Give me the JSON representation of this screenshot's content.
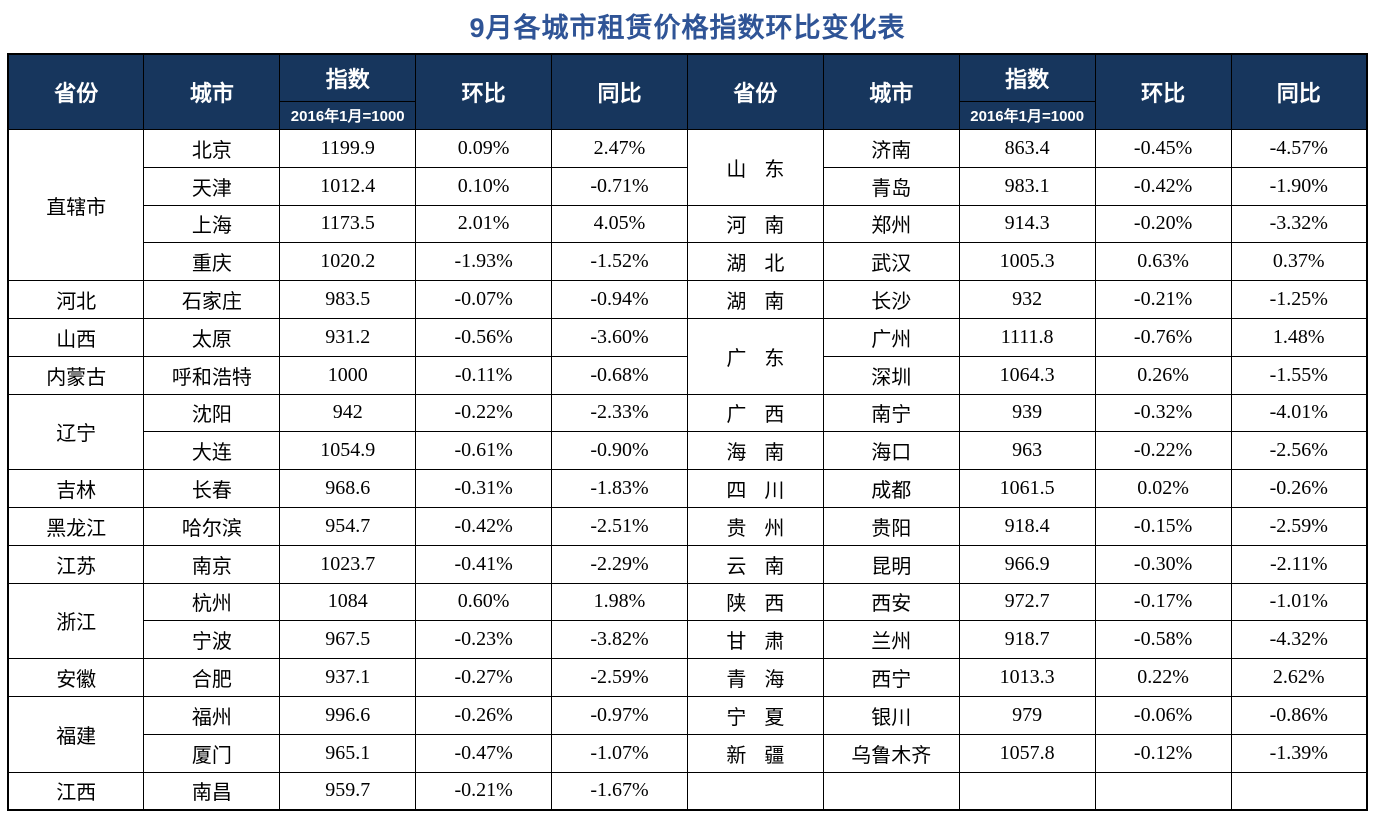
{
  "title": "9月各城市租赁价格指数环比变化表",
  "colors": {
    "header_bg": "#17365D",
    "header_text": "#FFFFFF",
    "title_text": "#2F5496",
    "grid": "#000000",
    "body_text": "#000000",
    "background": "#FFFFFF"
  },
  "header": {
    "province": "省份",
    "city": "城市",
    "index": "指数",
    "index_base": "2016年1月=1000",
    "mom": "环比",
    "yoy": "同比"
  },
  "left_rows": [
    {
      "province": "直辖市",
      "city": "北京",
      "index": "1199.9",
      "mom": "0.09%",
      "yoy": "2.47%"
    },
    {
      "city": "天津",
      "index": "1012.4",
      "mom": "0.10%",
      "yoy": "-0.71%"
    },
    {
      "city": "上海",
      "index": "1173.5",
      "mom": "2.01%",
      "yoy": "4.05%"
    },
    {
      "city": "重庆",
      "index": "1020.2",
      "mom": "-1.93%",
      "yoy": "-1.52%"
    },
    {
      "province": "河北",
      "city": "石家庄",
      "index": "983.5",
      "mom": "-0.07%",
      "yoy": "-0.94%"
    },
    {
      "province": "山西",
      "city": "太原",
      "index": "931.2",
      "mom": "-0.56%",
      "yoy": "-3.60%"
    },
    {
      "province": "内蒙古",
      "city": "呼和浩特",
      "index": "1000",
      "mom": "-0.11%",
      "yoy": "-0.68%"
    },
    {
      "province": "辽宁",
      "city": "沈阳",
      "index": "942",
      "mom": "-0.22%",
      "yoy": "-2.33%"
    },
    {
      "city": "大连",
      "index": "1054.9",
      "mom": "-0.61%",
      "yoy": "-0.90%"
    },
    {
      "province": "吉林",
      "city": "长春",
      "index": "968.6",
      "mom": "-0.31%",
      "yoy": "-1.83%"
    },
    {
      "province": "黑龙江",
      "city": "哈尔滨",
      "index": "954.7",
      "mom": "-0.42%",
      "yoy": "-2.51%"
    },
    {
      "province": "江苏",
      "city": "南京",
      "index": "1023.7",
      "mom": "-0.41%",
      "yoy": "-2.29%"
    },
    {
      "province": "浙江",
      "city": "杭州",
      "index": "1084",
      "mom": "0.60%",
      "yoy": "1.98%"
    },
    {
      "city": "宁波",
      "index": "967.5",
      "mom": "-0.23%",
      "yoy": "-3.82%"
    },
    {
      "province": "安徽",
      "city": "合肥",
      "index": "937.1",
      "mom": "-0.27%",
      "yoy": "-2.59%"
    },
    {
      "province": "福建",
      "city": "福州",
      "index": "996.6",
      "mom": "-0.26%",
      "yoy": "-0.97%"
    },
    {
      "city": "厦门",
      "index": "965.1",
      "mom": "-0.47%",
      "yoy": "-1.07%"
    },
    {
      "province": "江西",
      "city": "南昌",
      "index": "959.7",
      "mom": "-0.21%",
      "yoy": "-1.67%"
    }
  ],
  "right_rows": [
    {
      "province": "山东",
      "city": "济南",
      "index": "863.4",
      "mom": "-0.45%",
      "yoy": "-4.57%"
    },
    {
      "city": "青岛",
      "index": "983.1",
      "mom": "-0.42%",
      "yoy": "-1.90%"
    },
    {
      "province": "河南",
      "city": "郑州",
      "index": "914.3",
      "mom": "-0.20%",
      "yoy": "-3.32%"
    },
    {
      "province": "湖北",
      "city": "武汉",
      "index": "1005.3",
      "mom": "0.63%",
      "yoy": "0.37%"
    },
    {
      "province": "湖南",
      "city": "长沙",
      "index": "932",
      "mom": "-0.21%",
      "yoy": "-1.25%"
    },
    {
      "province": "广东",
      "city": "广州",
      "index": "1111.8",
      "mom": "-0.76%",
      "yoy": "1.48%"
    },
    {
      "city": "深圳",
      "index": "1064.3",
      "mom": "0.26%",
      "yoy": "-1.55%"
    },
    {
      "province": "广西",
      "city": "南宁",
      "index": "939",
      "mom": "-0.32%",
      "yoy": "-4.01%"
    },
    {
      "province": "海南",
      "city": "海口",
      "index": "963",
      "mom": "-0.22%",
      "yoy": "-2.56%"
    },
    {
      "province": "四川",
      "city": "成都",
      "index": "1061.5",
      "mom": "0.02%",
      "yoy": "-0.26%"
    },
    {
      "province": "贵州",
      "city": "贵阳",
      "index": "918.4",
      "mom": "-0.15%",
      "yoy": "-2.59%"
    },
    {
      "province": "云南",
      "city": "昆明",
      "index": "966.9",
      "mom": "-0.30%",
      "yoy": "-2.11%"
    },
    {
      "province": "陕西",
      "city": "西安",
      "index": "972.7",
      "mom": "-0.17%",
      "yoy": "-1.01%"
    },
    {
      "province": "甘肃",
      "city": "兰州",
      "index": "918.7",
      "mom": "-0.58%",
      "yoy": "-4.32%"
    },
    {
      "province": "青海",
      "city": "西宁",
      "index": "1013.3",
      "mom": "0.22%",
      "yoy": "2.62%"
    },
    {
      "province": "宁夏",
      "city": "银川",
      "index": "979",
      "mom": "-0.06%",
      "yoy": "-0.86%"
    },
    {
      "province": "新疆",
      "city": "乌鲁木齐",
      "index": "1057.8",
      "mom": "-0.12%",
      "yoy": "-1.39%"
    },
    {
      "province": "",
      "city": "",
      "index": "",
      "mom": "",
      "yoy": ""
    }
  ]
}
